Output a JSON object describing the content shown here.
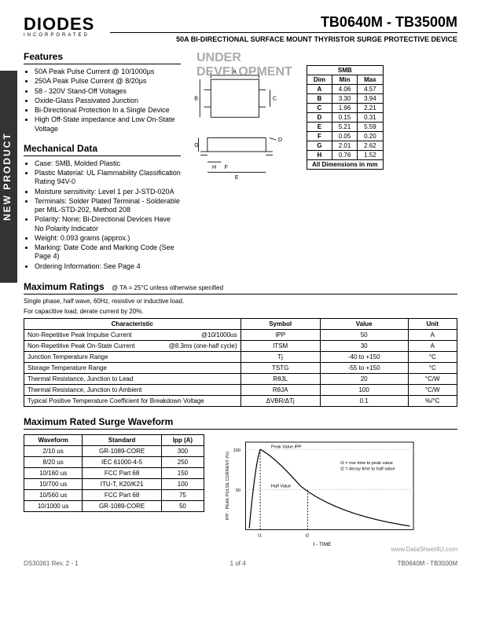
{
  "sideTab": "NEW PRODUCT",
  "logo": "DIODES",
  "logoSub": "INCORPORATED",
  "partTitle": "TB0640M - TB3500M",
  "subtitle": "50A BI-DIRECTIONAL SURFACE MOUNT THYRISTOR SURGE PROTECTIVE DEVICE",
  "underDev": "UNDER DEVELOPMENT",
  "sections": {
    "features": "Features",
    "mech": "Mechanical Data",
    "maxRatings": "Maximum Ratings",
    "maxRatingsCond": "@ TA = 25°C unless otherwise specified",
    "surge": "Maximum Rated Surge Waveform"
  },
  "features": [
    "50A Peak Pulse Current @ 10/1000μs",
    "250A Peak Pulse Current @ 8/20μs",
    "58 - 320V Stand-Off Voltages",
    "Oxide-Glass Passivated Junction",
    "Bi-Directional Protection In a Single Device",
    "High Off-State impedance and Low On-State Voltage"
  ],
  "mech": [
    "Case: SMB, Molded Plastic",
    "Plastic Material: UL Flammability Classification Rating 94V-0",
    "Moisture sensitivity: Level 1 per J-STD-020A",
    "Terminals: Solder Plated Terminal - Solderable per MIL-STD-202, Method 208",
    "Polarity: None; Bi-Directional Devices Have No Polarity Indicator",
    "Weight: 0.093 grams (approx.)",
    "Marking: Date Code and Marking Code (See Page 4)",
    "Ordering Information: See Page 4"
  ],
  "dimTable": {
    "header": [
      "Dim",
      "Min",
      "Max"
    ],
    "title": "SMB",
    "rows": [
      [
        "A",
        "4.06",
        "4.57"
      ],
      [
        "B",
        "3.30",
        "3.94"
      ],
      [
        "C",
        "1.96",
        "2.21"
      ],
      [
        "D",
        "0.15",
        "0.31"
      ],
      [
        "E",
        "5.21",
        "5.59"
      ],
      [
        "F",
        "0.05",
        "0.20"
      ],
      [
        "G",
        "2.01",
        "2.62"
      ],
      [
        "H",
        "0.76",
        "1.52"
      ]
    ],
    "footer": "All Dimensions in mm"
  },
  "ratingsNote1": "Single phase, half wave, 60Hz, resistive or inductive load.",
  "ratingsNote2": "For capacitive load, derate current by 20%.",
  "ratingsHeader": [
    "Characteristic",
    "Symbol",
    "Value",
    "Unit"
  ],
  "ratings": [
    {
      "char": "Non-Repetitive Peak Impulse Current",
      "cond": "@10/1000us",
      "sym": "IPP",
      "val": "50",
      "unit": "A"
    },
    {
      "char": "Non-Repetitive Peak On-State Current",
      "cond": "@8.3ms (one-half cycle)",
      "sym": "ITSM",
      "val": "30",
      "unit": "A"
    },
    {
      "char": "Junction Temperature Range",
      "cond": "",
      "sym": "Tj",
      "val": "-40 to +150",
      "unit": "°C"
    },
    {
      "char": "Storage Temperature Range",
      "cond": "",
      "sym": "TSTG",
      "val": "-55 to +150",
      "unit": "°C"
    },
    {
      "char": "Thermal Resistance, Junction to Lead",
      "cond": "",
      "sym": "RθJL",
      "val": "20",
      "unit": "°C/W"
    },
    {
      "char": "Thermal Resistance, Junction to Ambient",
      "cond": "",
      "sym": "RθJA",
      "val": "100",
      "unit": "°C/W"
    },
    {
      "char": "Typical Positive Temperature Coefficient for Breakdown Voltage",
      "cond": "",
      "sym": "ΔVBR/ΔTj",
      "val": "0.1",
      "unit": "%/°C"
    }
  ],
  "surgeHeader": [
    "Waveform",
    "Standard",
    "Ipp (A)"
  ],
  "surgeRows": [
    [
      "2/10 us",
      "GR-1089-CORE",
      "300"
    ],
    [
      "8/20 us",
      "IEC 61000-4-5",
      "250"
    ],
    [
      "10/160 us",
      "FCC Part 68",
      "150"
    ],
    [
      "10/700 us",
      "ITU-T, K20/K21",
      "100"
    ],
    [
      "10/560 us",
      "FCC Part 68",
      "75"
    ],
    [
      "10/1000 us",
      "GR-1089-CORE",
      "50"
    ]
  ],
  "chart": {
    "xlabel": "t - TIME",
    "ylabel": "IPP - PEAK PULSE CURRENT (%)",
    "peakLabel": "Peak Value IPP",
    "halfLabel": "Half Value",
    "riseLabel": "t1 = rise time to peak value",
    "decayLabel": "t2 = decay time to half value",
    "t1": "t1",
    "t2": "t2",
    "yticks": [
      "100",
      "50"
    ],
    "lineColor": "#000",
    "gridColor": "#ccc",
    "bgColor": "#fff"
  },
  "pkgLabels": {
    "A": "A",
    "B": "B",
    "C": "C",
    "D": "D",
    "E": "E",
    "F": "F",
    "G": "G",
    "H": "H"
  },
  "footer": {
    "left": "DS30361 Rev. 2 - 1",
    "center": "1 of 4",
    "right": "TB0640M - TB3500M"
  },
  "watermark": "www.DataSheet4U.com"
}
